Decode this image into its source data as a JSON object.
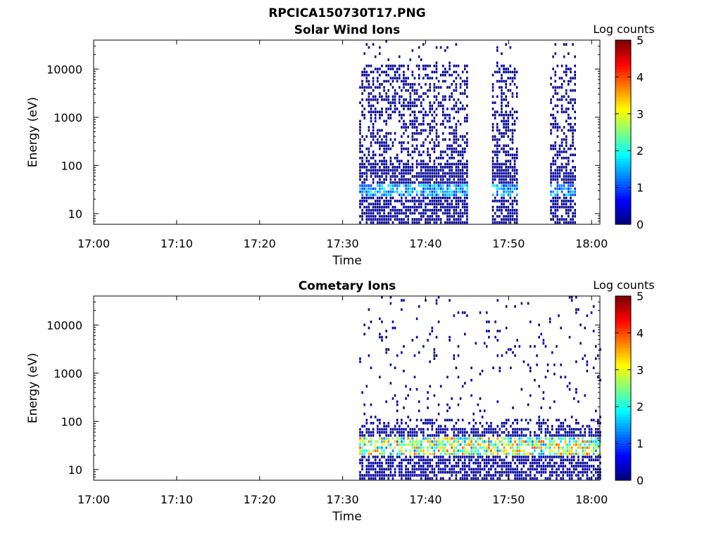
{
  "figure": {
    "title": "RPCICA150730T17.PNG"
  },
  "chart_data": [
    {
      "type": "heatmap",
      "title": "Solar Wind Ions",
      "xlabel": "Time",
      "ylabel": "Energy (eV)",
      "x_ticks": [
        "17:00",
        "17:10",
        "17:20",
        "17:30",
        "17:40",
        "17:50",
        "18:00"
      ],
      "x_range_minutes": [
        0,
        61
      ],
      "y_scale": "log",
      "y_ticks": [
        10,
        100,
        1000,
        10000
      ],
      "y_tick_labels": [
        "10",
        "100",
        "1000",
        "10000"
      ],
      "y_range": [
        6,
        40000
      ],
      "colorbar": {
        "label": "Log counts",
        "ticks": [
          "0",
          "1",
          "2",
          "3",
          "4",
          "5"
        ],
        "range": [
          0,
          5
        ],
        "colormap": "jet"
      },
      "activity_intervals": [
        {
          "start": "17:32",
          "end": "17:45",
          "peak_log_counts": 2,
          "peak_energy_ev": 30
        },
        {
          "start": "17:48",
          "end": "17:51",
          "peak_log_counts": 2,
          "peak_energy_ev": 30
        },
        {
          "start": "17:55",
          "end": "17:58",
          "peak_log_counts": 1.8,
          "peak_energy_ev": 30
        }
      ],
      "grid": false
    },
    {
      "type": "heatmap",
      "title": "Cometary Ions",
      "xlabel": "Time",
      "ylabel": "Energy (eV)",
      "x_ticks": [
        "17:00",
        "17:10",
        "17:20",
        "17:30",
        "17:40",
        "17:50",
        "18:00"
      ],
      "x_range_minutes": [
        0,
        61
      ],
      "y_scale": "log",
      "y_ticks": [
        10,
        100,
        1000,
        10000
      ],
      "y_tick_labels": [
        "10",
        "100",
        "1000",
        "10000"
      ],
      "y_range": [
        6,
        40000
      ],
      "colorbar": {
        "label": "Log counts",
        "ticks": [
          "0",
          "1",
          "2",
          "3",
          "4",
          "5"
        ],
        "range": [
          0,
          5
        ],
        "colormap": "jet"
      },
      "activity_intervals": [
        {
          "start": "17:32",
          "end": "18:01",
          "peak_log_counts": 4,
          "peak_energy_ev": 30
        }
      ],
      "grid": false
    }
  ]
}
